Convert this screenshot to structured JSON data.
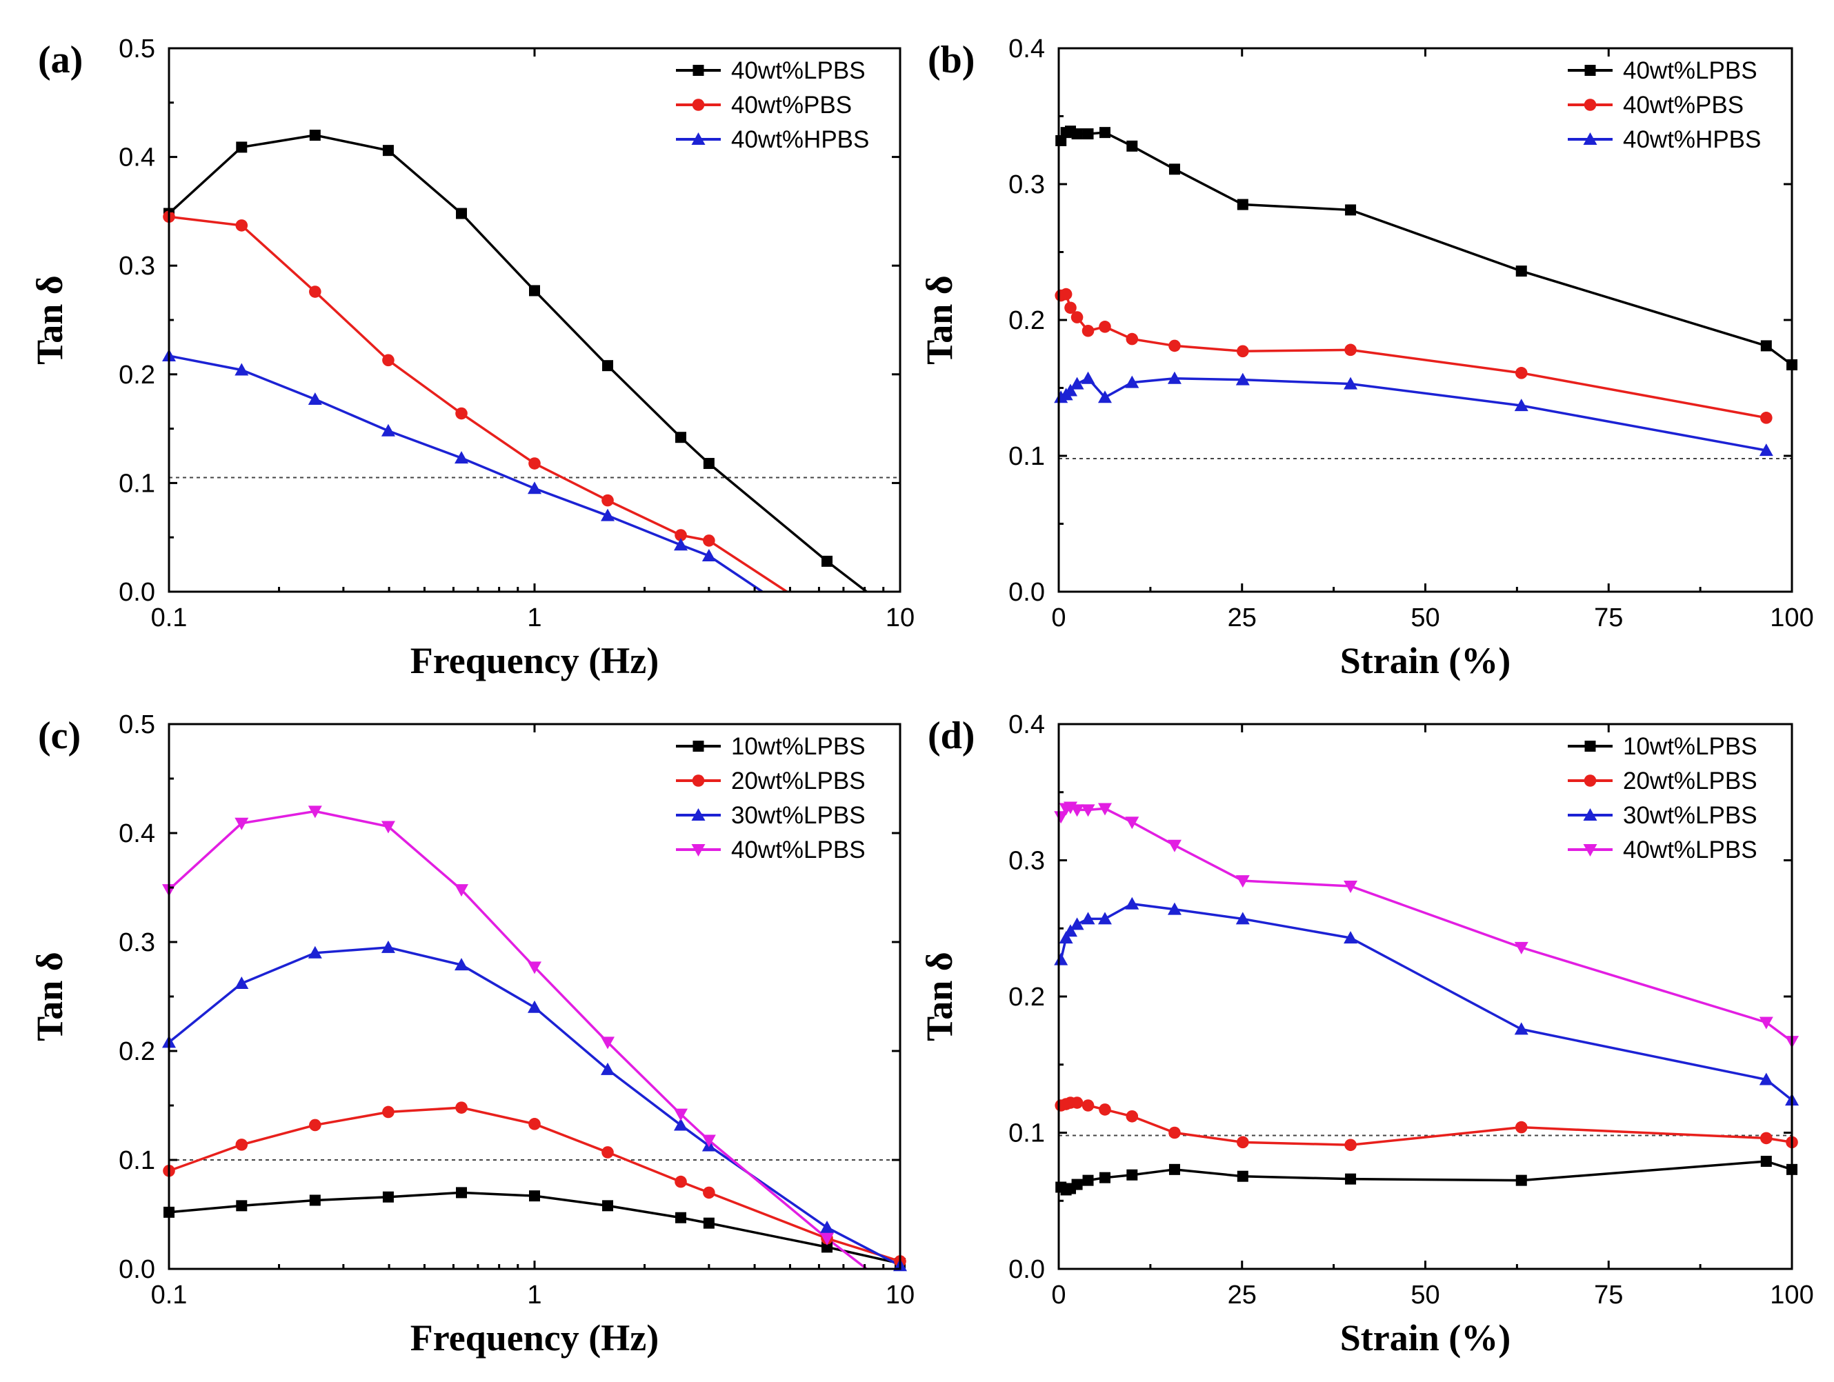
{
  "chart_data": [
    {
      "panel": "(a)",
      "type": "line",
      "xscale": "log",
      "xlabel": "Frequency (Hz)",
      "ylabel": "Tan δ",
      "xlim": [
        0.1,
        10
      ],
      "ylim": [
        0,
        0.5
      ],
      "xticks": [
        0.1,
        1,
        10
      ],
      "xtick_labels": [
        "0.1",
        "1",
        "10"
      ],
      "yticks": [
        0.0,
        0.1,
        0.2,
        0.3,
        0.4,
        0.5
      ],
      "ytick_labels": [
        "0.0",
        "0.1",
        "0.2",
        "0.3",
        "0.4",
        "0.5"
      ],
      "reference_line_y": 0.105,
      "legend_position": "top-right",
      "series": [
        {
          "name": "40wt%LPBS",
          "color": "#000000",
          "marker": "square",
          "x": [
            0.1,
            0.158,
            0.251,
            0.398,
            0.631,
            1.0,
            1.585,
            2.512,
            3.0,
            6.31
          ],
          "y": [
            0.348,
            0.409,
            0.42,
            0.406,
            0.348,
            0.277,
            0.208,
            0.142,
            0.118,
            0.028
          ],
          "line_end": [
            8.1,
            0.0
          ]
        },
        {
          "name": "40wt%PBS",
          "color": "#e8201c",
          "marker": "circle",
          "x": [
            0.1,
            0.158,
            0.251,
            0.398,
            0.631,
            1.0,
            1.585,
            2.512,
            3.0
          ],
          "y": [
            0.345,
            0.337,
            0.276,
            0.213,
            0.164,
            0.118,
            0.084,
            0.052,
            0.047
          ],
          "line_end": [
            4.9,
            0.0
          ]
        },
        {
          "name": "40wt%HPBS",
          "color": "#1c22d4",
          "marker": "triangle-up",
          "x": [
            0.1,
            0.158,
            0.251,
            0.398,
            0.631,
            1.0,
            1.585,
            2.512,
            3.0
          ],
          "y": [
            0.217,
            0.204,
            0.177,
            0.148,
            0.123,
            0.095,
            0.07,
            0.043,
            0.033
          ],
          "line_end": [
            4.2,
            0.0
          ]
        }
      ]
    },
    {
      "panel": "(b)",
      "type": "line",
      "xscale": "linear",
      "xlabel": "Strain (%)",
      "ylabel": "Tan δ",
      "xlim": [
        0,
        100
      ],
      "ylim": [
        0,
        0.4
      ],
      "xticks": [
        0,
        25,
        50,
        75,
        100
      ],
      "xtick_labels": [
        "0",
        "25",
        "50",
        "75",
        "100"
      ],
      "yticks": [
        0.0,
        0.1,
        0.2,
        0.3,
        0.4
      ],
      "ytick_labels": [
        "0.0",
        "0.1",
        "0.2",
        "0.3",
        "0.4"
      ],
      "reference_line_y": 0.098,
      "legend_position": "top-right",
      "series": [
        {
          "name": "40wt%LPBS",
          "color": "#000000",
          "marker": "square",
          "x": [
            0.3,
            1.0,
            1.6,
            2.5,
            4.0,
            6.3,
            10,
            15.8,
            25.1,
            39.8,
            63.1,
            96.5,
            100
          ],
          "y": [
            0.332,
            0.338,
            0.339,
            0.337,
            0.337,
            0.338,
            0.328,
            0.311,
            0.285,
            0.281,
            0.236,
            0.181,
            0.167
          ]
        },
        {
          "name": "40wt%PBS",
          "color": "#e8201c",
          "marker": "circle",
          "x": [
            0.3,
            1.0,
            1.6,
            2.5,
            4.0,
            6.3,
            10,
            15.8,
            25.1,
            39.8,
            63.1,
            96.5
          ],
          "y": [
            0.218,
            0.219,
            0.209,
            0.202,
            0.192,
            0.195,
            0.186,
            0.181,
            0.177,
            0.178,
            0.161,
            0.128
          ]
        },
        {
          "name": "40wt%HPBS",
          "color": "#1c22d4",
          "marker": "triangle-up",
          "x": [
            0.3,
            1.0,
            1.6,
            2.5,
            4.0,
            6.3,
            10,
            15.8,
            25.1,
            39.8,
            63.1,
            96.5
          ],
          "y": [
            0.143,
            0.145,
            0.148,
            0.153,
            0.157,
            0.143,
            0.154,
            0.157,
            0.156,
            0.153,
            0.137,
            0.104
          ]
        }
      ]
    },
    {
      "panel": "(c)",
      "type": "line",
      "xscale": "log",
      "xlabel": "Frequency (Hz)",
      "ylabel": "Tan δ",
      "xlim": [
        0.1,
        10
      ],
      "ylim": [
        0,
        0.5
      ],
      "xticks": [
        0.1,
        1,
        10
      ],
      "xtick_labels": [
        "0.1",
        "1",
        "10"
      ],
      "yticks": [
        0.0,
        0.1,
        0.2,
        0.3,
        0.4,
        0.5
      ],
      "ytick_labels": [
        "0.0",
        "0.1",
        "0.2",
        "0.3",
        "0.4",
        "0.5"
      ],
      "reference_line_y": 0.1,
      "legend_position": "top-right",
      "series": [
        {
          "name": "10wt%LPBS",
          "color": "#000000",
          "marker": "square",
          "x": [
            0.1,
            0.158,
            0.251,
            0.398,
            0.631,
            1.0,
            1.585,
            2.512,
            3.0,
            6.31,
            10
          ],
          "y": [
            0.052,
            0.058,
            0.063,
            0.066,
            0.07,
            0.067,
            0.058,
            0.047,
            0.042,
            0.02,
            0.005
          ]
        },
        {
          "name": "20wt%LPBS",
          "color": "#e8201c",
          "marker": "circle",
          "x": [
            0.1,
            0.158,
            0.251,
            0.398,
            0.631,
            1.0,
            1.585,
            2.512,
            3.0,
            6.31,
            10
          ],
          "y": [
            0.09,
            0.114,
            0.132,
            0.144,
            0.148,
            0.133,
            0.107,
            0.08,
            0.07,
            0.028,
            0.007
          ]
        },
        {
          "name": "30wt%LPBS",
          "color": "#1c22d4",
          "marker": "triangle-up",
          "x": [
            0.1,
            0.158,
            0.251,
            0.398,
            0.631,
            1.0,
            1.585,
            2.512,
            3.0,
            6.31,
            10
          ],
          "y": [
            0.208,
            0.262,
            0.29,
            0.295,
            0.279,
            0.24,
            0.183,
            0.132,
            0.113,
            0.038,
            0.003
          ]
        },
        {
          "name": "40wt%LPBS",
          "color": "#e21ee2",
          "marker": "triangle-down",
          "x": [
            0.1,
            0.158,
            0.251,
            0.398,
            0.631,
            1.0,
            1.585,
            2.512,
            3.0,
            6.31
          ],
          "y": [
            0.348,
            0.409,
            0.42,
            0.406,
            0.348,
            0.277,
            0.208,
            0.142,
            0.118,
            0.028
          ],
          "line_end": [
            8.1,
            0.0
          ]
        }
      ]
    },
    {
      "panel": "(d)",
      "type": "line",
      "xscale": "linear",
      "xlabel": "Strain (%)",
      "ylabel": "Tan δ",
      "xlim": [
        0,
        100
      ],
      "ylim": [
        0,
        0.4
      ],
      "xticks": [
        0,
        25,
        50,
        75,
        100
      ],
      "xtick_labels": [
        "0",
        "25",
        "50",
        "75",
        "100"
      ],
      "yticks": [
        0.0,
        0.1,
        0.2,
        0.3,
        0.4
      ],
      "ytick_labels": [
        "0.0",
        "0.1",
        "0.2",
        "0.3",
        "0.4"
      ],
      "reference_line_y": 0.098,
      "legend_position": "top-right",
      "series": [
        {
          "name": "10wt%LPBS",
          "color": "#000000",
          "marker": "square",
          "x": [
            0.3,
            1.0,
            1.6,
            2.5,
            4.0,
            6.3,
            10,
            15.8,
            25.1,
            39.8,
            63.1,
            96.5,
            100
          ],
          "y": [
            0.06,
            0.058,
            0.059,
            0.062,
            0.065,
            0.067,
            0.069,
            0.073,
            0.068,
            0.066,
            0.065,
            0.079,
            0.073
          ]
        },
        {
          "name": "20wt%LPBS",
          "color": "#e8201c",
          "marker": "circle",
          "x": [
            0.3,
            1.0,
            1.6,
            2.5,
            4.0,
            6.3,
            10,
            15.8,
            25.1,
            39.8,
            63.1,
            96.5,
            100
          ],
          "y": [
            0.12,
            0.121,
            0.122,
            0.122,
            0.12,
            0.117,
            0.112,
            0.1,
            0.093,
            0.091,
            0.104,
            0.096,
            0.093
          ]
        },
        {
          "name": "30wt%LPBS",
          "color": "#1c22d4",
          "marker": "triangle-up",
          "x": [
            0.3,
            1.0,
            1.6,
            2.5,
            4.0,
            6.3,
            10,
            15.8,
            25.1,
            39.8,
            63.1,
            96.5,
            100
          ],
          "y": [
            0.227,
            0.243,
            0.248,
            0.253,
            0.257,
            0.257,
            0.268,
            0.264,
            0.257,
            0.243,
            0.176,
            0.139,
            0.124
          ]
        },
        {
          "name": "40wt%LPBS",
          "color": "#e21ee2",
          "marker": "triangle-down",
          "x": [
            0.3,
            1.0,
            1.6,
            2.5,
            4.0,
            6.3,
            10,
            15.8,
            25.1,
            39.8,
            63.1,
            96.5,
            100
          ],
          "y": [
            0.332,
            0.338,
            0.339,
            0.337,
            0.337,
            0.338,
            0.328,
            0.311,
            0.285,
            0.281,
            0.236,
            0.181,
            0.167
          ]
        }
      ]
    }
  ]
}
